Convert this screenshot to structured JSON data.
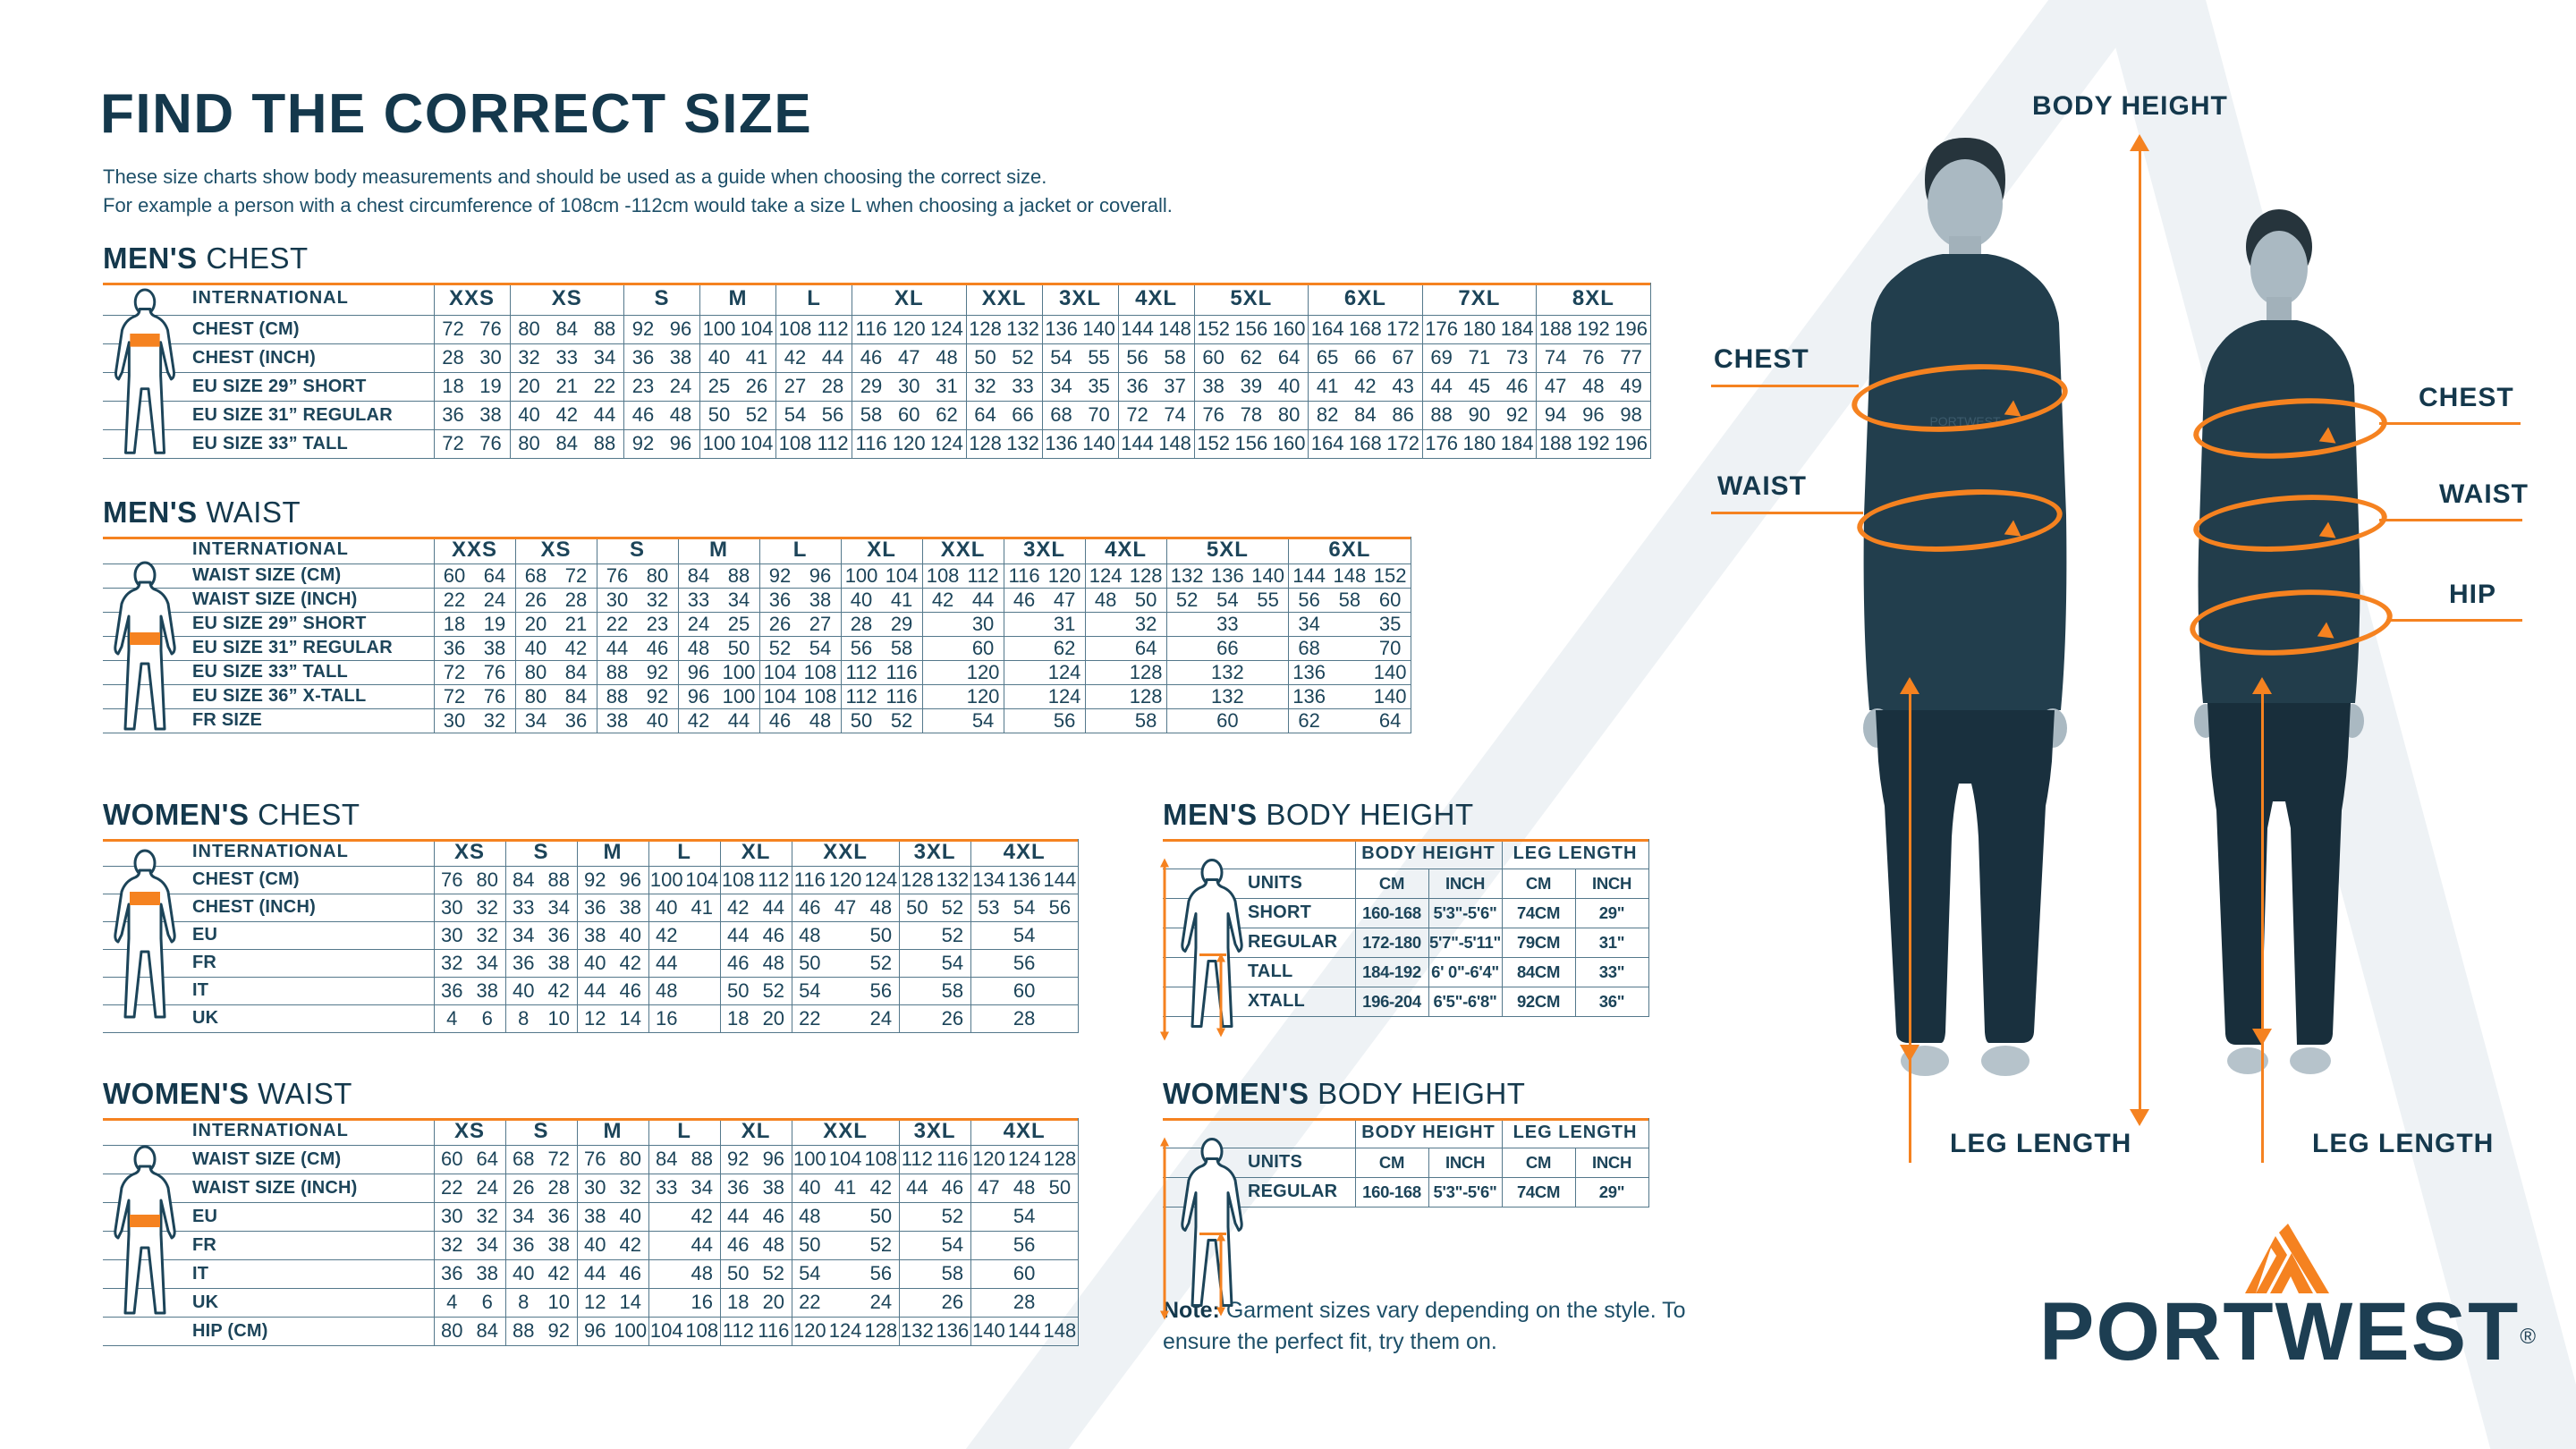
{
  "page": {
    "title": "FIND THE CORRECT SIZE",
    "subtitle_line1": "These size charts show body measurements and should be used as a guide when choosing the correct size.",
    "subtitle_line2": "For example a person with a chest circumference of 108cm -112cm would take a size L when choosing a jacket or coverall.",
    "note_label": "Note:",
    "note_text": " Garment sizes vary depending on the style. To ensure the perfect fit, try them on."
  },
  "colors": {
    "navy": "#1c4459",
    "navy_dark": "#14384c",
    "orange": "#f58220",
    "table_line": "#54788b"
  },
  "icons": {
    "male-outline-icon": "standing man outline with orange measurement band",
    "female-outline-icon": "standing woman outline with orange measurement band",
    "height-arrow-icon": "orange double-headed vertical arrow",
    "logo-mountain-icon": "orange twin-peak mountain mark"
  },
  "figure_labels": {
    "body_height": "BODY HEIGHT",
    "chest_left": "CHEST",
    "waist_left": "WAIST",
    "chest_right": "CHEST",
    "waist_right": "WAIST",
    "hip_right": "HIP",
    "leg_length_left": "LEG LENGTH",
    "leg_length_right": "LEG LENGTH"
  },
  "logo": {
    "text": "PORTWEST",
    "registered": "®"
  },
  "tables": {
    "mens_chest": {
      "name": "mens-chest",
      "title": {
        "strong": "MEN'S",
        "rest": " CHEST"
      },
      "col_header": "INTERNATIONAL",
      "label_col": 370,
      "sub_col": 42.5,
      "sizes": [
        {
          "label": "XXS",
          "span": 2
        },
        {
          "label": "XS",
          "span": 3
        },
        {
          "label": "S",
          "span": 2
        },
        {
          "label": "M",
          "span": 2
        },
        {
          "label": "L",
          "span": 2
        },
        {
          "label": "XL",
          "span": 3
        },
        {
          "label": "XXL",
          "span": 2
        },
        {
          "label": "3XL",
          "span": 2
        },
        {
          "label": "4XL",
          "span": 2
        },
        {
          "label": "5XL",
          "span": 3
        },
        {
          "label": "6XL",
          "span": 3
        },
        {
          "label": "7XL",
          "span": 3
        },
        {
          "label": "8XL",
          "span": 3
        }
      ],
      "rows": [
        {
          "label": "CHEST (CM)",
          "cells": [
            "72",
            "76",
            "80",
            "84",
            "88",
            "92",
            "96",
            "100",
            "104",
            "108",
            "112",
            "116",
            "120",
            "124",
            "128",
            "132",
            "136",
            "140",
            "144",
            "148",
            "152",
            "156",
            "160",
            "164",
            "168",
            "172",
            "176",
            "180",
            "184",
            "188",
            "192",
            "196"
          ]
        },
        {
          "label": "CHEST (INCH)",
          "cells": [
            "28",
            "30",
            "32",
            "33",
            "34",
            "36",
            "38",
            "40",
            "41",
            "42",
            "44",
            "46",
            "47",
            "48",
            "50",
            "52",
            "54",
            "55",
            "56",
            "58",
            "60",
            "62",
            "64",
            "65",
            "66",
            "67",
            "69",
            "71",
            "73",
            "74",
            "76",
            "77"
          ]
        },
        {
          "label": "EU SIZE 29” SHORT",
          "cells": [
            "18",
            "19",
            "20",
            "21",
            "22",
            "23",
            "24",
            "25",
            "26",
            "27",
            "28",
            "29",
            "30",
            "31",
            "32",
            "33",
            "34",
            "35",
            "36",
            "37",
            "38",
            "39",
            "40",
            "41",
            "42",
            "43",
            "44",
            "45",
            "46",
            "47",
            "48",
            "49"
          ]
        },
        {
          "label": "EU SIZE 31” REGULAR",
          "cells": [
            "36",
            "38",
            "40",
            "42",
            "44",
            "46",
            "48",
            "50",
            "52",
            "54",
            "56",
            "58",
            "60",
            "62",
            "64",
            "66",
            "68",
            "70",
            "72",
            "74",
            "76",
            "78",
            "80",
            "82",
            "84",
            "86",
            "88",
            "90",
            "92",
            "94",
            "96",
            "98"
          ]
        },
        {
          "label": "EU SIZE 33” TALL",
          "cells": [
            "72",
            "76",
            "80",
            "84",
            "88",
            "92",
            "96",
            "100",
            "104",
            "108",
            "112",
            "116",
            "120",
            "124",
            "128",
            "132",
            "136",
            "140",
            "144",
            "148",
            "152",
            "156",
            "160",
            "164",
            "168",
            "172",
            "176",
            "180",
            "184",
            "188",
            "192",
            "196"
          ]
        }
      ]
    },
    "mens_waist": {
      "name": "mens-waist",
      "title": {
        "strong": "MEN'S",
        "rest": " WAIST"
      },
      "col_header": "INTERNATIONAL",
      "label_col": 370,
      "sub_col": 45.5,
      "sizes": [
        {
          "label": "XXS",
          "span": 2
        },
        {
          "label": "XS",
          "span": 2
        },
        {
          "label": "S",
          "span": 2
        },
        {
          "label": "M",
          "span": 2
        },
        {
          "label": "L",
          "span": 2
        },
        {
          "label": "XL",
          "span": 2
        },
        {
          "label": "XXL",
          "span": 2
        },
        {
          "label": "3XL",
          "span": 2
        },
        {
          "label": "4XL",
          "span": 2
        },
        {
          "label": "5XL",
          "span": 3
        },
        {
          "label": "6XL",
          "span": 3
        }
      ],
      "rows": [
        {
          "label": "WAIST SIZE (CM)",
          "cells": [
            "60",
            "64",
            "68",
            "72",
            "76",
            "80",
            "84",
            "88",
            "92",
            "96",
            "100",
            "104",
            "108",
            "112",
            "116",
            "120",
            "124",
            "128",
            "132",
            "136",
            "140",
            "144",
            "148",
            "152"
          ]
        },
        {
          "label": "WAIST SIZE (INCH)",
          "cells": [
            "22",
            "24",
            "26",
            "28",
            "30",
            "32",
            "33",
            "34",
            "36",
            "38",
            "40",
            "41",
            "42",
            "44",
            "46",
            "47",
            "48",
            "50",
            "52",
            "54",
            "55",
            "56",
            "58",
            "60"
          ]
        },
        {
          "label": "EU SIZE 29” SHORT",
          "cells": [
            "18",
            "19",
            "20",
            "21",
            "22",
            "23",
            "24",
            "25",
            "26",
            "27",
            "28",
            "29",
            "",
            "30",
            "",
            "31",
            "",
            "32",
            [
              "33",
              3
            ],
            "34",
            "",
            "35"
          ]
        },
        {
          "label": "EU SIZE 31” REGULAR",
          "cells": [
            "36",
            "38",
            "40",
            "42",
            "44",
            "46",
            "48",
            "50",
            "52",
            "54",
            "56",
            "58",
            "",
            "60",
            "",
            "62",
            "",
            "64",
            [
              "66",
              3
            ],
            "68",
            "",
            "70"
          ]
        },
        {
          "label": "EU SIZE 33” TALL",
          "cells": [
            "72",
            "76",
            "80",
            "84",
            "88",
            "92",
            "96",
            "100",
            "104",
            "108",
            "112",
            "116",
            "",
            "120",
            "",
            "124",
            "",
            "128",
            [
              "132",
              3
            ],
            "136",
            "",
            "140"
          ]
        },
        {
          "label": "EU SIZE 36” X-TALL",
          "cells": [
            "72",
            "76",
            "80",
            "84",
            "88",
            "92",
            "96",
            "100",
            "104",
            "108",
            "112",
            "116",
            "",
            "120",
            "",
            "124",
            "",
            "128",
            [
              "132",
              3
            ],
            "136",
            "",
            "140"
          ]
        },
        {
          "label": "FR SIZE",
          "cells": [
            "30",
            "32",
            "34",
            "36",
            "38",
            "40",
            "42",
            "44",
            "46",
            "48",
            "50",
            "52",
            "",
            "54",
            "",
            "56",
            "",
            "58",
            [
              "60",
              3
            ],
            "62",
            "",
            "64"
          ]
        }
      ]
    },
    "womens_chest": {
      "name": "womens-chest",
      "title": {
        "strong": "WOMEN'S",
        "rest": " CHEST"
      },
      "col_header": "INTERNATIONAL",
      "label_col": 370,
      "sub_col": 40,
      "sizes": [
        {
          "label": "XS",
          "span": 2
        },
        {
          "label": "S",
          "span": 2
        },
        {
          "label": "M",
          "span": 2
        },
        {
          "label": "L",
          "span": 2
        },
        {
          "label": "XL",
          "span": 2
        },
        {
          "label": "XXL",
          "span": 3
        },
        {
          "label": "3XL",
          "span": 2
        },
        {
          "label": "4XL",
          "span": 3
        }
      ],
      "rows": [
        {
          "label": "CHEST (CM)",
          "cells": [
            "76",
            "80",
            "84",
            "88",
            "92",
            "96",
            "100",
            "104",
            "108",
            "112",
            "116",
            "120",
            "124",
            "128",
            "132",
            "134",
            "136",
            "144"
          ]
        },
        {
          "label": "CHEST (INCH)",
          "cells": [
            "30",
            "32",
            "33",
            "34",
            "36",
            "38",
            "40",
            "41",
            "42",
            "44",
            "46",
            "47",
            "48",
            "50",
            "52",
            "53",
            "54",
            "56"
          ]
        },
        {
          "label": "EU",
          "cells": [
            "30",
            "32",
            "34",
            "36",
            "38",
            "40",
            "42",
            "",
            "44",
            "46",
            "48",
            "",
            "50",
            "",
            "52",
            [
              "54",
              3
            ]
          ]
        },
        {
          "label": "FR",
          "cells": [
            "32",
            "34",
            "36",
            "38",
            "40",
            "42",
            "44",
            "",
            "46",
            "48",
            "50",
            "",
            "52",
            "",
            "54",
            [
              "56",
              3
            ]
          ]
        },
        {
          "label": "IT",
          "cells": [
            "36",
            "38",
            "40",
            "42",
            "44",
            "46",
            "48",
            "",
            "50",
            "52",
            "54",
            "",
            "56",
            "",
            "58",
            [
              "60",
              3
            ]
          ]
        },
        {
          "label": "UK",
          "cells": [
            "4",
            "6",
            "8",
            "10",
            "12",
            "14",
            "16",
            "",
            "18",
            "20",
            "22",
            "",
            "24",
            "",
            "26",
            [
              "28",
              3
            ]
          ]
        }
      ]
    },
    "womens_waist": {
      "name": "womens-waist",
      "title": {
        "strong": "WOMEN'S",
        "rest": " WAIST"
      },
      "col_header": "INTERNATIONAL",
      "label_col": 370,
      "sub_col": 40,
      "sizes": [
        {
          "label": "XS",
          "span": 2
        },
        {
          "label": "S",
          "span": 2
        },
        {
          "label": "M",
          "span": 2
        },
        {
          "label": "L",
          "span": 2
        },
        {
          "label": "XL",
          "span": 2
        },
        {
          "label": "XXL",
          "span": 3
        },
        {
          "label": "3XL",
          "span": 2
        },
        {
          "label": "4XL",
          "span": 3
        }
      ],
      "rows": [
        {
          "label": "WAIST SIZE (CM)",
          "cells": [
            "60",
            "64",
            "68",
            "72",
            "76",
            "80",
            "84",
            "88",
            "92",
            "96",
            "100",
            "104",
            "108",
            "112",
            "116",
            "120",
            "124",
            "128"
          ]
        },
        {
          "label": "WAIST SIZE (INCH)",
          "cells": [
            "22",
            "24",
            "26",
            "28",
            "30",
            "32",
            "33",
            "34",
            "36",
            "38",
            "40",
            "41",
            "42",
            "44",
            "46",
            "47",
            "48",
            "50"
          ]
        },
        {
          "label": "EU",
          "cells": [
            "30",
            "32",
            "34",
            "36",
            "38",
            "40",
            "",
            "42",
            "44",
            "46",
            "48",
            "",
            "50",
            "",
            "52",
            [
              "54",
              3
            ]
          ]
        },
        {
          "label": "FR",
          "cells": [
            "32",
            "34",
            "36",
            "38",
            "40",
            "42",
            "",
            "44",
            "46",
            "48",
            "50",
            "",
            "52",
            "",
            "54",
            [
              "56",
              3
            ]
          ]
        },
        {
          "label": "IT",
          "cells": [
            "36",
            "38",
            "40",
            "42",
            "44",
            "46",
            "",
            "48",
            "50",
            "52",
            "54",
            "",
            "56",
            "",
            "58",
            [
              "60",
              3
            ]
          ]
        },
        {
          "label": "UK",
          "cells": [
            "4",
            "6",
            "8",
            "10",
            "12",
            "14",
            "",
            "16",
            "18",
            "20",
            "22",
            "",
            "24",
            "",
            "26",
            [
              "28",
              3
            ]
          ]
        },
        {
          "label": "HIP (CM)",
          "cells": [
            "80",
            "84",
            "88",
            "92",
            "96",
            "100",
            "104",
            "108",
            "112",
            "116",
            "120",
            "124",
            "128",
            "132",
            "136",
            "140",
            "144",
            "148"
          ]
        }
      ]
    },
    "mens_body_height": {
      "name": "mens-body-height",
      "title": {
        "strong": "MEN'S",
        "rest": " BODY HEIGHT"
      },
      "col_header": "",
      "label_col": 215,
      "sub_col": 82,
      "all_borders": true,
      "sizes": [
        {
          "label": "BODY HEIGHT",
          "span": 2
        },
        {
          "label": "LEG LENGTH",
          "span": 2
        }
      ],
      "rows": [
        {
          "label": "UNITS",
          "bold": true,
          "cells": [
            "CM",
            "INCH",
            "CM",
            "INCH"
          ]
        },
        {
          "label": "SHORT",
          "cells": [
            "160-168",
            "5'3\"-5'6\"",
            "74CM",
            "29\""
          ]
        },
        {
          "label": "REGULAR",
          "cells": [
            "172-180",
            "5'7\"-5'11\"",
            "79CM",
            "31\""
          ]
        },
        {
          "label": "TALL",
          "cells": [
            "184-192",
            "6' 0\"-6'4\"",
            "84CM",
            "33\""
          ]
        },
        {
          "label": "XTALL",
          "cells": [
            "196-204",
            "6'5\"-6'8\"",
            "92CM",
            "36\""
          ]
        }
      ]
    },
    "womens_body_height": {
      "name": "womens-body-height",
      "title": {
        "strong": "WOMEN'S",
        "rest": " BODY HEIGHT"
      },
      "col_header": "",
      "label_col": 215,
      "sub_col": 82,
      "all_borders": true,
      "sizes": [
        {
          "label": "BODY HEIGHT",
          "span": 2
        },
        {
          "label": "LEG LENGTH",
          "span": 2
        }
      ],
      "rows": [
        {
          "label": "UNITS",
          "bold": true,
          "cells": [
            "CM",
            "INCH",
            "CM",
            "INCH"
          ]
        },
        {
          "label": "REGULAR",
          "cells": [
            "160-168",
            "5'3\"-5'6\"",
            "74CM",
            "29\""
          ]
        }
      ]
    }
  }
}
